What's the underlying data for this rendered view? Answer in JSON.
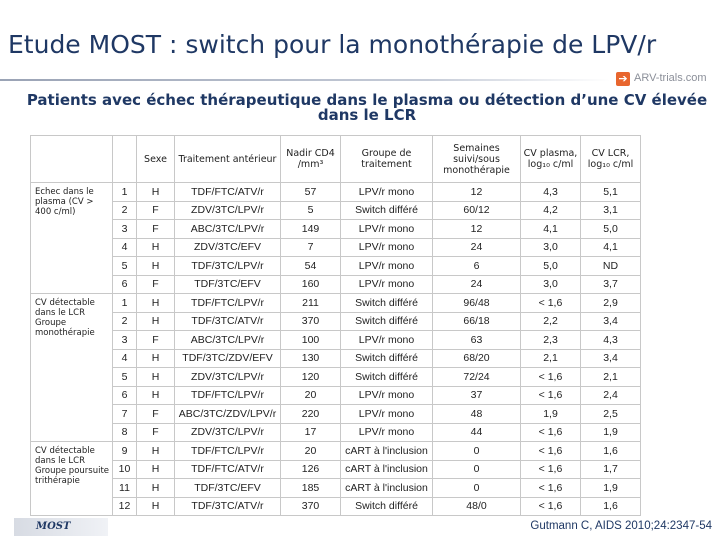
{
  "title": "Etude MOST : switch pour la monothérapie de LPV/r",
  "logo_text": "ARV-trials.com",
  "subtitle": "Patients avec échec thérapeutique dans le plasma ou détection d’une CV élevée dans le LCR",
  "headers": [
    "Sexe",
    "Traitement antérieur",
    "Nadir CD4 /mm³",
    "Groupe de traitement",
    "Semaines suivi/sous monothérapie",
    "CV plasma, log₁₀ c/ml",
    "CV LCR, log₁₀ c/ml"
  ],
  "groups": [
    "Echec dans le plasma (CV > 400 c/ml)",
    "CV détectable dans le LCR Groupe monothérapie",
    "CV détectable dans le LCR Groupe poursuite trithérapie"
  ],
  "rows": [
    [
      "1",
      "H",
      "TDF/FTC/ATV/r",
      "57",
      "LPV/r mono",
      "12",
      "4,3",
      "5,1"
    ],
    [
      "2",
      "F",
      "ZDV/3TC/LPV/r",
      "5",
      "Switch différé",
      "60/12",
      "4,2",
      "3,1"
    ],
    [
      "3",
      "F",
      "ABC/3TC/LPV/r",
      "149",
      "LPV/r mono",
      "12",
      "4,1",
      "5,0"
    ],
    [
      "4",
      "H",
      "ZDV/3TC/EFV",
      "7",
      "LPV/r mono",
      "24",
      "3,0",
      "4,1"
    ],
    [
      "5",
      "H",
      "TDF/3TC/LPV/r",
      "54",
      "LPV/r mono",
      "6",
      "5,0",
      "ND"
    ],
    [
      "6",
      "F",
      "TDF/3TC/EFV",
      "160",
      "LPV/r mono",
      "24",
      "3,0",
      "3,7"
    ],
    [
      "1",
      "H",
      "TDF/FTC/LPV/r",
      "211",
      "Switch différé",
      "96/48",
      "< 1,6",
      "2,9"
    ],
    [
      "2",
      "H",
      "TDF/3TC/ATV/r",
      "370",
      "Switch différé",
      "66/18",
      "2,2",
      "3,4"
    ],
    [
      "3",
      "F",
      "ABC/3TC/LPV/r",
      "100",
      "LPV/r mono",
      "63",
      "2,3",
      "4,3"
    ],
    [
      "4",
      "H",
      "TDF/3TC/ZDV/EFV",
      "130",
      "Switch différé",
      "68/20",
      "2,1",
      "3,4"
    ],
    [
      "5",
      "H",
      "ZDV/3TC/LPV/r",
      "120",
      "Switch différé",
      "72/24",
      "< 1,6",
      "2,1"
    ],
    [
      "6",
      "H",
      "TDF/FTC/LPV/r",
      "20",
      "LPV/r mono",
      "37",
      "< 1,6",
      "2,4"
    ],
    [
      "7",
      "F",
      "ABC/3TC/ZDV/LPV/r",
      "220",
      "LPV/r mono",
      "48",
      "1,9",
      "2,5"
    ],
    [
      "8",
      "F",
      "ZDV/3TC/LPV/r",
      "17",
      "LPV/r mono",
      "44",
      "< 1,6",
      "1,9"
    ],
    [
      "9",
      "H",
      "TDF/FTC/LPV/r",
      "20",
      "cART à l'inclusion",
      "0",
      "< 1,6",
      "1,6"
    ],
    [
      "10",
      "H",
      "TDF/FTC/ATV/r",
      "126",
      "cART à l'inclusion",
      "0",
      "< 1,6",
      "1,7"
    ],
    [
      "11",
      "H",
      "TDF/3TC/EFV",
      "185",
      "cART à l'inclusion",
      "0",
      "< 1,6",
      "1,9"
    ],
    [
      "12",
      "H",
      "TDF/3TC/ATV/r",
      "370",
      "Switch différé",
      "48/0",
      "< 1,6",
      "1,6"
    ]
  ],
  "footer_logo": "MOST",
  "citation": "Gutmann C, AIDS 2010;24:2347-54",
  "colors": {
    "title": "#1f3864",
    "logo_accent": "#e8662e"
  }
}
